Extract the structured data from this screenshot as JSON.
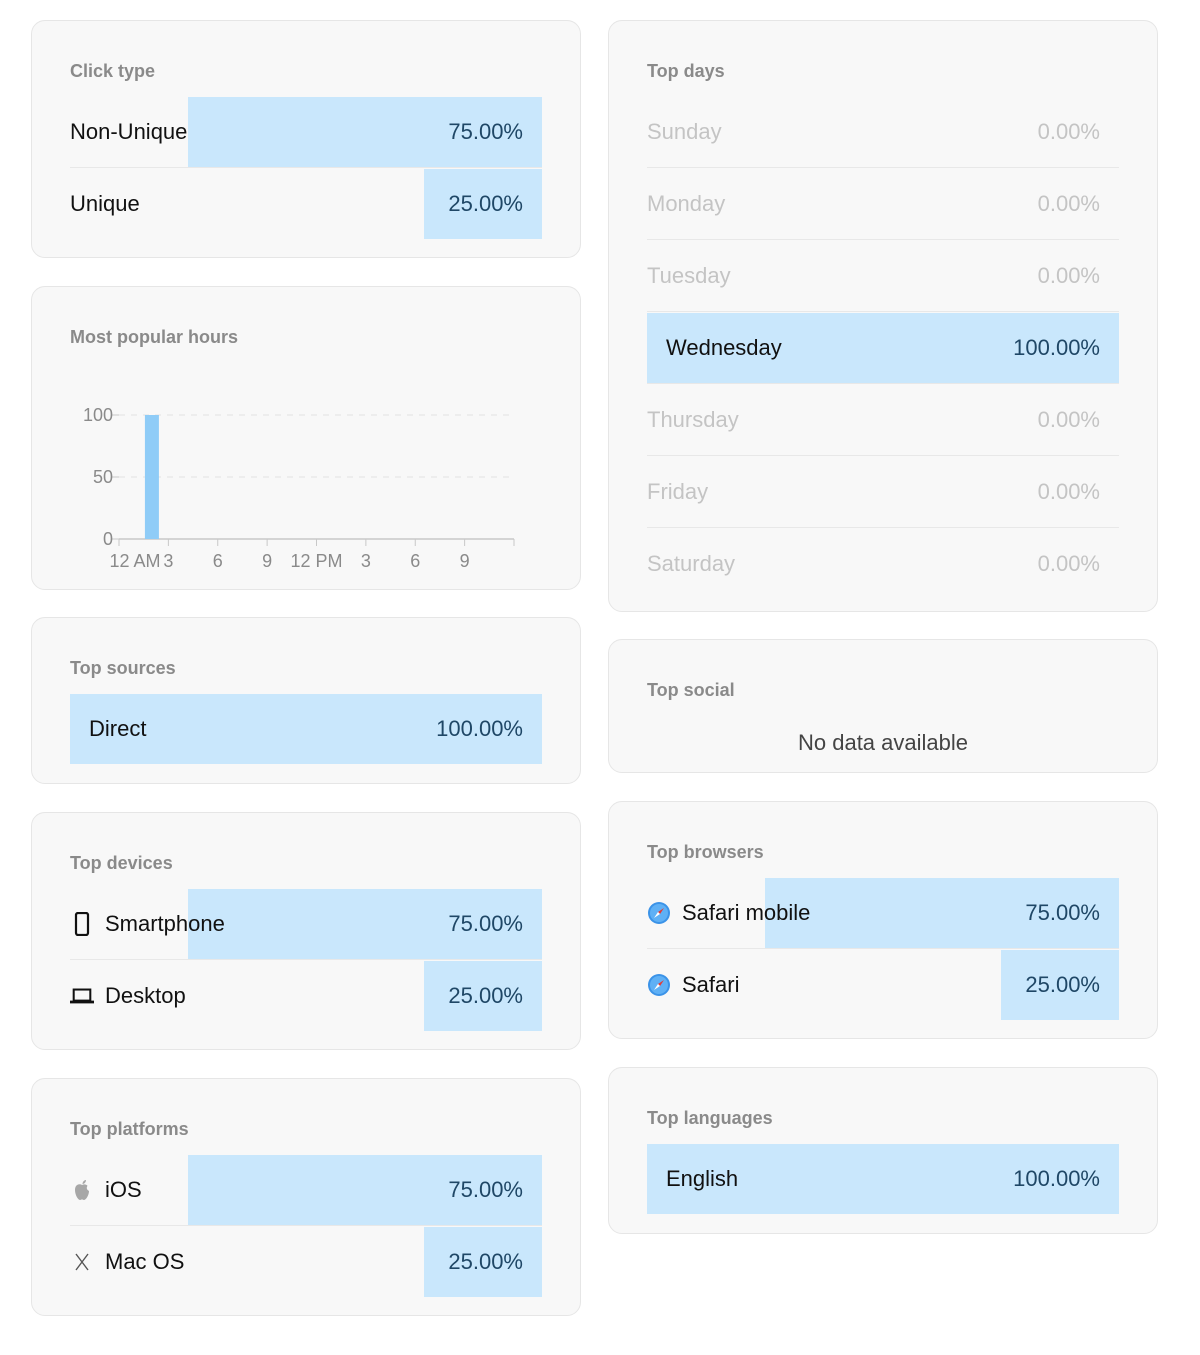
{
  "click_type": {
    "title": "Click type",
    "rows": [
      {
        "label": "Non-Unique",
        "value": "75.00%",
        "fraction": 0.75
      },
      {
        "label": "Unique",
        "value": "25.00%",
        "fraction": 0.25
      }
    ]
  },
  "popular_hours": {
    "title": "Most popular hours",
    "chart_data": {
      "type": "bar",
      "title": "Most popular hours",
      "x": [
        0,
        1,
        2,
        3,
        4,
        5,
        6,
        7,
        8,
        9,
        10,
        11,
        12,
        13,
        14,
        15,
        16,
        17,
        18,
        19,
        20,
        21,
        22,
        23
      ],
      "values": [
        0,
        0,
        100,
        0,
        0,
        0,
        0,
        0,
        0,
        0,
        0,
        0,
        0,
        0,
        0,
        0,
        0,
        0,
        0,
        0,
        0,
        0,
        0,
        0
      ],
      "tick_labels": [
        "12 AM",
        "3",
        "6",
        "9",
        "12 PM",
        "3",
        "6",
        "9"
      ],
      "tick_hours": [
        0,
        3,
        6,
        9,
        12,
        15,
        18,
        21
      ],
      "ylim": [
        0,
        100
      ],
      "yticks": [
        0,
        50,
        100
      ],
      "grid": true,
      "bar_color": "#8fccf7"
    }
  },
  "top_sources": {
    "title": "Top sources",
    "rows": [
      {
        "label": "Direct",
        "value": "100.00%",
        "fraction": 1.0
      }
    ]
  },
  "top_devices": {
    "title": "Top devices",
    "rows": [
      {
        "label": "Smartphone",
        "value": "75.00%",
        "fraction": 0.75,
        "icon": "smartphone-icon"
      },
      {
        "label": "Desktop",
        "value": "25.00%",
        "fraction": 0.25,
        "icon": "laptop-icon"
      }
    ]
  },
  "top_platforms": {
    "title": "Top platforms",
    "rows": [
      {
        "label": "iOS",
        "value": "75.00%",
        "fraction": 0.75,
        "icon": "apple-icon"
      },
      {
        "label": "Mac OS",
        "value": "25.00%",
        "fraction": 0.25,
        "icon": "macos-x-icon"
      }
    ]
  },
  "top_days": {
    "title": "Top days",
    "rows": [
      {
        "label": "Sunday",
        "value": "0.00%",
        "fraction": 0
      },
      {
        "label": "Monday",
        "value": "0.00%",
        "fraction": 0
      },
      {
        "label": "Tuesday",
        "value": "0.00%",
        "fraction": 0
      },
      {
        "label": "Wednesday",
        "value": "100.00%",
        "fraction": 1.0
      },
      {
        "label": "Thursday",
        "value": "0.00%",
        "fraction": 0
      },
      {
        "label": "Friday",
        "value": "0.00%",
        "fraction": 0
      },
      {
        "label": "Saturday",
        "value": "0.00%",
        "fraction": 0
      }
    ]
  },
  "top_social": {
    "title": "Top social",
    "empty_text": "No data available"
  },
  "top_browsers": {
    "title": "Top browsers",
    "rows": [
      {
        "label": "Safari mobile",
        "value": "75.00%",
        "fraction": 0.75,
        "icon": "safari-compass-icon"
      },
      {
        "label": "Safari",
        "value": "25.00%",
        "fraction": 0.25,
        "icon": "safari-compass-icon"
      }
    ]
  },
  "top_languages": {
    "title": "Top languages",
    "rows": [
      {
        "label": "English",
        "value": "100.00%",
        "fraction": 1.0
      }
    ]
  },
  "colors": {
    "bar_fill": "#c9e7fc",
    "chart_bar": "#8fccf7",
    "value_text": "#1f4766",
    "muted_text": "#c4c4c4"
  }
}
